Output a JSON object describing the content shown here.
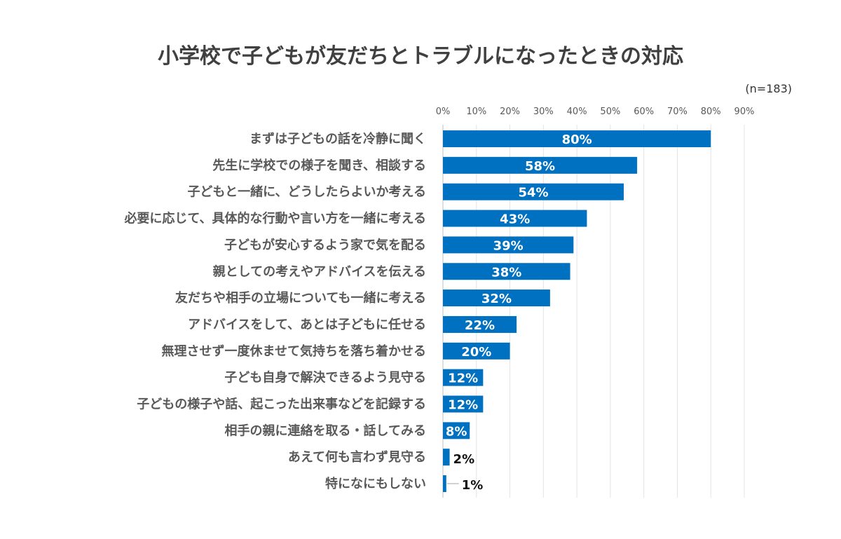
{
  "chart_data": {
    "type": "bar",
    "orientation": "horizontal",
    "title": "小学校で子どもが友だちとトラブルになったときの対応",
    "note": "(n=183)",
    "xlim": [
      0,
      90
    ],
    "x_ticks": [
      "0%",
      "10%",
      "20%",
      "30%",
      "40%",
      "50%",
      "60%",
      "70%",
      "80%",
      "90%"
    ],
    "grid": "vertical",
    "bar_color": "#0070C0",
    "categories": [
      "まずは子どもの話を冷静に聞く",
      "先生に学校での様子を聞き、相談する",
      "子どもと一緒に、どうしたらよいか考える",
      "必要に応じて、具体的な行動や言い方を一緒に考える",
      "子どもが安心するよう家で気を配る",
      "親としての考えやアドバイスを伝える",
      "友だちや相手の立場についても一緒に考える",
      "アドバイスをして、あとは子どもに任せる",
      "無理させず一度休ませて気持ちを落ち着かせる",
      "子ども自身で解決できるよう見守る",
      "子どもの様子や話、起こった出来事などを記録する",
      "相手の親に連絡を取る・話してみる",
      "あえて何も言わず見守る",
      "特になにもしない"
    ],
    "values": [
      80,
      58,
      54,
      43,
      39,
      38,
      32,
      22,
      20,
      12,
      12,
      8,
      2,
      1
    ],
    "data_labels": [
      "80%",
      "58%",
      "54%",
      "43%",
      "39%",
      "38%",
      "32%",
      "22%",
      "20%",
      "12%",
      "12%",
      "8%",
      "2%",
      "1%"
    ]
  }
}
